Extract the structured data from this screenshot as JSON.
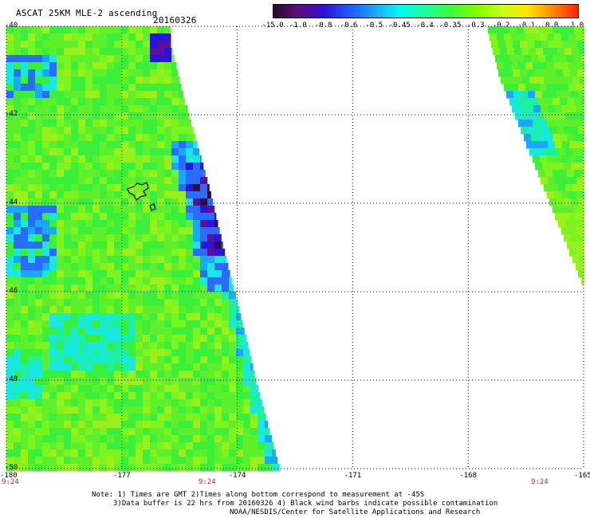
{
  "title": "ASCAT 25KM MLE-2 ascending",
  "date": "20160326",
  "colorbar": {
    "tick_labels": [
      "-15.0",
      "-1.0",
      "-0.8",
      "-0.6",
      "-0.5",
      "-0.45",
      "-0.4",
      "-0.35",
      "-0.3",
      "-0.2",
      "-0.1",
      "0.0",
      "1.0"
    ],
    "colors": [
      "#2a0a24",
      "#5b0f7f",
      "#2a12d6",
      "#1e5cff",
      "#1aa6ff",
      "#00ffee",
      "#1cff9a",
      "#3bff3b",
      "#7fff00",
      "#c8ff1a",
      "#ffe500",
      "#ff8a00",
      "#ff2000"
    ]
  },
  "map": {
    "lon_ticks": [
      "-180",
      "-177",
      "-174",
      "-171",
      "-168",
      "-165"
    ],
    "lat_ticks": [
      "-40",
      "-42",
      "-44",
      "-46",
      "-48",
      "-50"
    ],
    "times": [
      "9:24",
      "9:24",
      "9:24"
    ]
  },
  "notes": {
    "line1": "Note: 1) Times are GMT 2)Times along bottom correspond to measurement at -45S",
    "line2": "3)Data buffer is 22 hrs from 20160326 4) Black wind barbs indicate possible contamination",
    "line3": "NOAA/NESDIS/Center for Satellite Applications and Research"
  }
}
